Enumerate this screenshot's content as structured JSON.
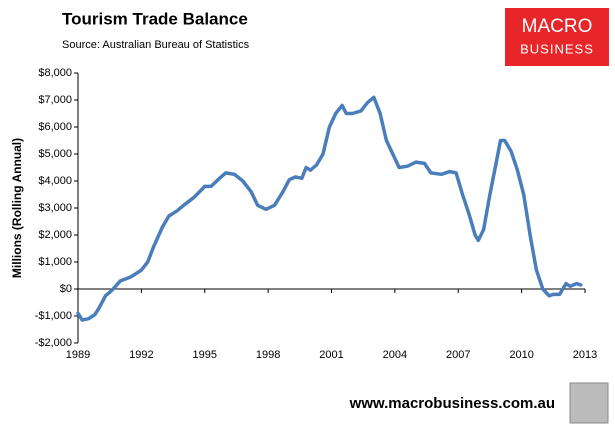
{
  "chart_data": {
    "type": "line",
    "title": "Tourism Trade Balance",
    "subtitle": "Source:  Australian Bureau of Statistics",
    "y_label": "Millions (Rolling Annual)",
    "color": "#4a7ebb",
    "x": [
      1989.0,
      1989.2,
      1989.5,
      1989.8,
      1990.0,
      1990.3,
      1990.6,
      1991.0,
      1991.5,
      1992.0,
      1992.3,
      1992.6,
      1993.0,
      1993.3,
      1993.7,
      1994.0,
      1994.5,
      1995.0,
      1995.3,
      1995.7,
      1996.0,
      1996.4,
      1996.8,
      1997.2,
      1997.5,
      1997.9,
      1998.3,
      1998.7,
      1999.0,
      1999.3,
      1999.6,
      1999.8,
      2000.0,
      2000.3,
      2000.6,
      2000.9,
      2001.2,
      2001.5,
      2001.7,
      2002.0,
      2002.4,
      2002.7,
      2003.0,
      2003.3,
      2003.6,
      2003.9,
      2004.2,
      2004.6,
      2005.0,
      2005.4,
      2005.7,
      2006.2,
      2006.6,
      2006.9,
      2007.2,
      2007.5,
      2007.8,
      2007.95,
      2008.2,
      2008.5,
      2008.8,
      2009.0,
      2009.2,
      2009.5,
      2009.8,
      2010.1,
      2010.4,
      2010.7,
      2011.0,
      2011.3,
      2011.5,
      2011.8,
      2012.1,
      2012.3,
      2012.6,
      2012.8
    ],
    "values": [
      -900,
      -1150,
      -1100,
      -950,
      -700,
      -250,
      -50,
      300,
      450,
      700,
      1000,
      1600,
      2300,
      2700,
      2900,
      3100,
      3400,
      3800,
      3800,
      4100,
      4300,
      4250,
      4000,
      3600,
      3100,
      2950,
      3100,
      3600,
      4050,
      4150,
      4100,
      4500,
      4400,
      4600,
      5000,
      6000,
      6500,
      6800,
      6500,
      6500,
      6600,
      6900,
      7100,
      6500,
      5500,
      5000,
      4500,
      4550,
      4700,
      4650,
      4300,
      4250,
      4350,
      4300,
      3500,
      2800,
      2000,
      1800,
      2200,
      3500,
      4700,
      5500,
      5500,
      5100,
      4400,
      3500,
      2000,
      700,
      0,
      -250,
      -200,
      -200,
      200,
      100,
      200,
      150
    ],
    "xlim": [
      1989,
      2013
    ],
    "xticks": [
      1989,
      1992,
      1995,
      1998,
      2001,
      2004,
      2007,
      2010,
      2013
    ],
    "ylim": [
      -2000,
      8000
    ],
    "yticks": [
      {
        "value": -2000,
        "label": "-$2,000"
      },
      {
        "value": -1000,
        "label": "-$1,000"
      },
      {
        "value": 0,
        "label": "$0"
      },
      {
        "value": 1000,
        "label": "$1,000"
      },
      {
        "value": 2000,
        "label": "$2,000"
      },
      {
        "value": 3000,
        "label": "$3,000"
      },
      {
        "value": 4000,
        "label": "$4,000"
      },
      {
        "value": 5000,
        "label": "$5,000"
      },
      {
        "value": 6000,
        "label": "$6,000"
      },
      {
        "value": 7000,
        "label": "$7,000"
      },
      {
        "value": 8000,
        "label": "$8,000"
      }
    ],
    "grid": false
  },
  "branding": {
    "logo_top": "MACRO",
    "logo_bottom": "BUSINESS",
    "url": "www.macrobusiness.com.au"
  }
}
